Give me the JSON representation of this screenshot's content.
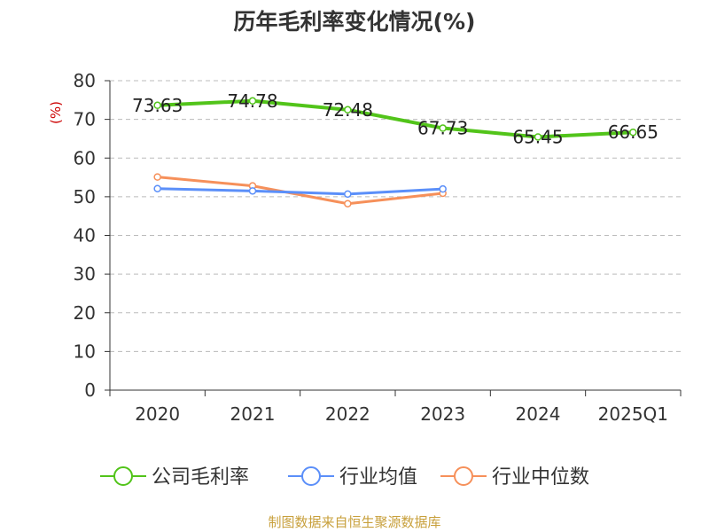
{
  "chart_data": {
    "type": "line",
    "title": "历年毛利率变化情况(%)",
    "ylabel": "(%)",
    "categories": [
      "2020",
      "2021",
      "2022",
      "2023",
      "2024",
      "2025Q1"
    ],
    "ylim": [
      0,
      80
    ],
    "yticks": [
      "0",
      "10",
      "20",
      "30",
      "40",
      "50",
      "60",
      "70",
      "80"
    ],
    "grid": true,
    "legend_position": "bottom",
    "series": [
      {
        "name": "公司毛利率",
        "color": "#52c41a",
        "values": [
          73.63,
          74.78,
          72.48,
          67.73,
          65.45,
          66.65
        ],
        "labels": [
          "73.63",
          "74.78",
          "72.48",
          "67.73",
          "65.45",
          "66.65"
        ]
      },
      {
        "name": "行业均值",
        "color": "#5b8ff9",
        "values": [
          52.1,
          51.5,
          50.7,
          52.0,
          null,
          null
        ]
      },
      {
        "name": "行业中位数",
        "color": "#f6905a",
        "values": [
          55.1,
          52.8,
          48.2,
          50.9,
          null,
          null
        ]
      }
    ]
  },
  "footer": {
    "source": "制图数据来自恒生聚源数据库"
  }
}
